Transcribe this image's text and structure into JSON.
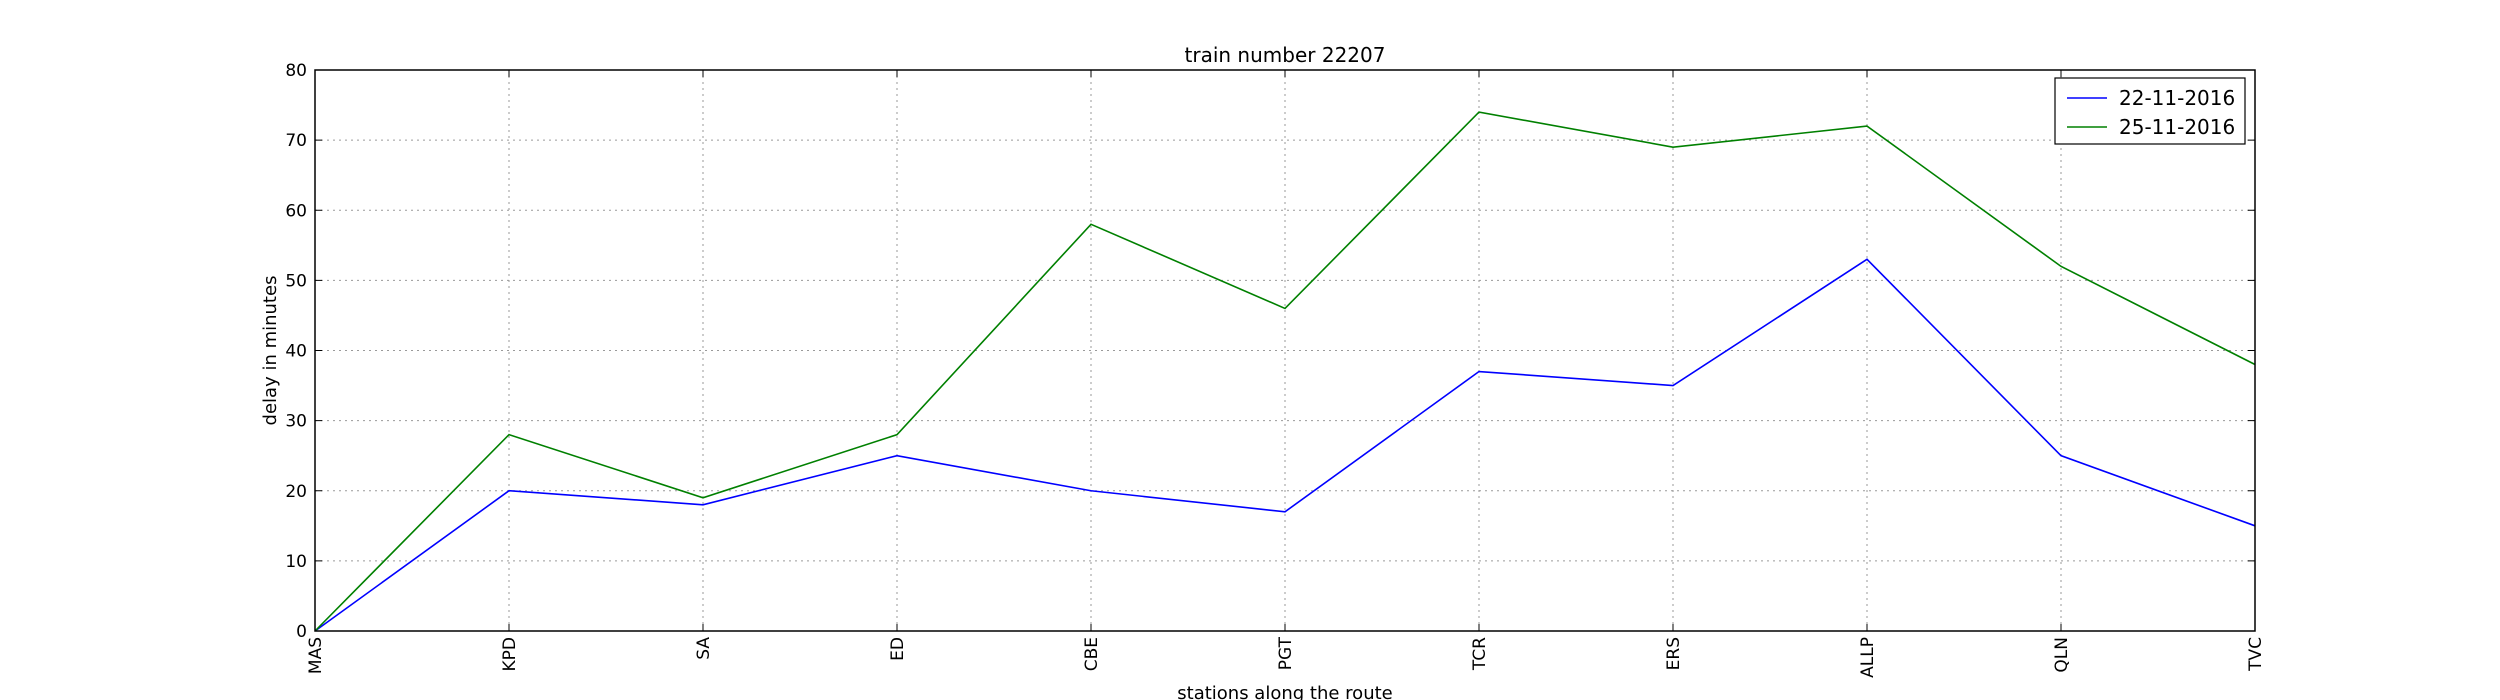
{
  "chart_data": {
    "type": "line",
    "title": "train number 22207",
    "xlabel": "stations along the route",
    "ylabel": "delay in minutes",
    "categories": [
      "MAS",
      "KPD",
      "SA",
      "ED",
      "CBE",
      "PGT",
      "TCR",
      "ERS",
      "ALLP",
      "QLN",
      "TVC"
    ],
    "ylim": [
      0,
      80
    ],
    "yticks": [
      0,
      10,
      20,
      30,
      40,
      50,
      60,
      70,
      80
    ],
    "grid": true,
    "legend_position": "top-right",
    "series": [
      {
        "name": "22-11-2016",
        "color": "#0000ff",
        "values": [
          0,
          20,
          18,
          25,
          20,
          17,
          37,
          35,
          53,
          25,
          15
        ]
      },
      {
        "name": "25-11-2016",
        "color": "#008000",
        "values": [
          0,
          28,
          19,
          28,
          58,
          46,
          74,
          69,
          72,
          52,
          38
        ]
      }
    ]
  }
}
